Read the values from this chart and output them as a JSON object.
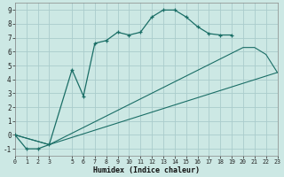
{
  "main_x": [
    0,
    1,
    2,
    3,
    5,
    6,
    7,
    8,
    9,
    10,
    11,
    12,
    13,
    14,
    15,
    16,
    17,
    18,
    19
  ],
  "main_y": [
    0,
    -1,
    -1,
    -0.7,
    4.7,
    2.8,
    6.6,
    6.8,
    7.4,
    7.2,
    7.4,
    8.5,
    9.0,
    9.0,
    8.5,
    7.8,
    7.3,
    7.2,
    7.2
  ],
  "line2_x": [
    0,
    3,
    23
  ],
  "line2_y": [
    0,
    -0.7,
    4.5
  ],
  "line3_x": [
    0,
    3,
    20,
    21,
    22,
    23
  ],
  "line3_y": [
    0,
    -0.7,
    6.3,
    6.3,
    5.8,
    4.5
  ],
  "bg_color": "#cce8e4",
  "line_color": "#1a6e66",
  "grid_color": "#aacccc",
  "xlabel": "Humidex (Indice chaleur)",
  "xlim": [
    0,
    23
  ],
  "ylim": [
    -1.5,
    9.5
  ],
  "xticks": [
    0,
    1,
    2,
    3,
    5,
    6,
    7,
    8,
    9,
    10,
    11,
    12,
    13,
    14,
    15,
    16,
    17,
    18,
    19,
    20,
    21,
    22,
    23
  ],
  "yticks": [
    -1,
    0,
    1,
    2,
    3,
    4,
    5,
    6,
    7,
    8,
    9
  ]
}
